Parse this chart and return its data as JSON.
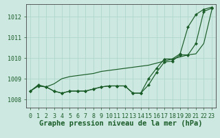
{
  "title": "Graphe pression niveau de la mer (hPa)",
  "background_color": "#cce8e0",
  "plot_bg_color": "#cce8e0",
  "grid_color": "#aad4c8",
  "line_color": "#1a5c28",
  "marker_color": "#1a5c28",
  "x_values": [
    0,
    1,
    2,
    3,
    4,
    5,
    6,
    7,
    8,
    9,
    10,
    11,
    12,
    13,
    14,
    15,
    16,
    17,
    18,
    19,
    20,
    21,
    22,
    23
  ],
  "line_jagged": [
    1008.4,
    1008.7,
    1008.6,
    1008.4,
    1008.3,
    1008.4,
    1008.4,
    1008.4,
    1008.5,
    1008.6,
    1008.65,
    1008.65,
    1008.65,
    1008.3,
    1008.3,
    1008.7,
    1009.3,
    1009.8,
    1009.85,
    1010.15,
    1010.15,
    1010.7,
    1012.25,
    1012.4
  ],
  "line_smooth": [
    1008.4,
    1008.65,
    1008.6,
    1008.75,
    1009.0,
    1009.1,
    1009.15,
    1009.2,
    1009.25,
    1009.35,
    1009.4,
    1009.45,
    1009.5,
    1009.55,
    1009.6,
    1009.65,
    1009.75,
    1009.85,
    1009.95,
    1010.05,
    1010.15,
    1010.2,
    1010.7,
    1012.3
  ],
  "line_upper": [
    1008.4,
    1008.65,
    1008.6,
    1008.4,
    1008.3,
    1008.4,
    1008.4,
    1008.4,
    1008.5,
    1008.6,
    1008.65,
    1008.65,
    1008.65,
    1008.3,
    1008.3,
    1009.0,
    1009.5,
    1009.95,
    1009.95,
    1010.2,
    1011.5,
    1012.1,
    1012.35,
    1012.45
  ],
  "ylim": [
    1007.6,
    1012.6
  ],
  "yticks": [
    1008,
    1009,
    1010,
    1011,
    1012
  ],
  "xlim": [
    -0.5,
    23.5
  ],
  "title_fontsize": 7.5,
  "tick_fontsize": 6
}
